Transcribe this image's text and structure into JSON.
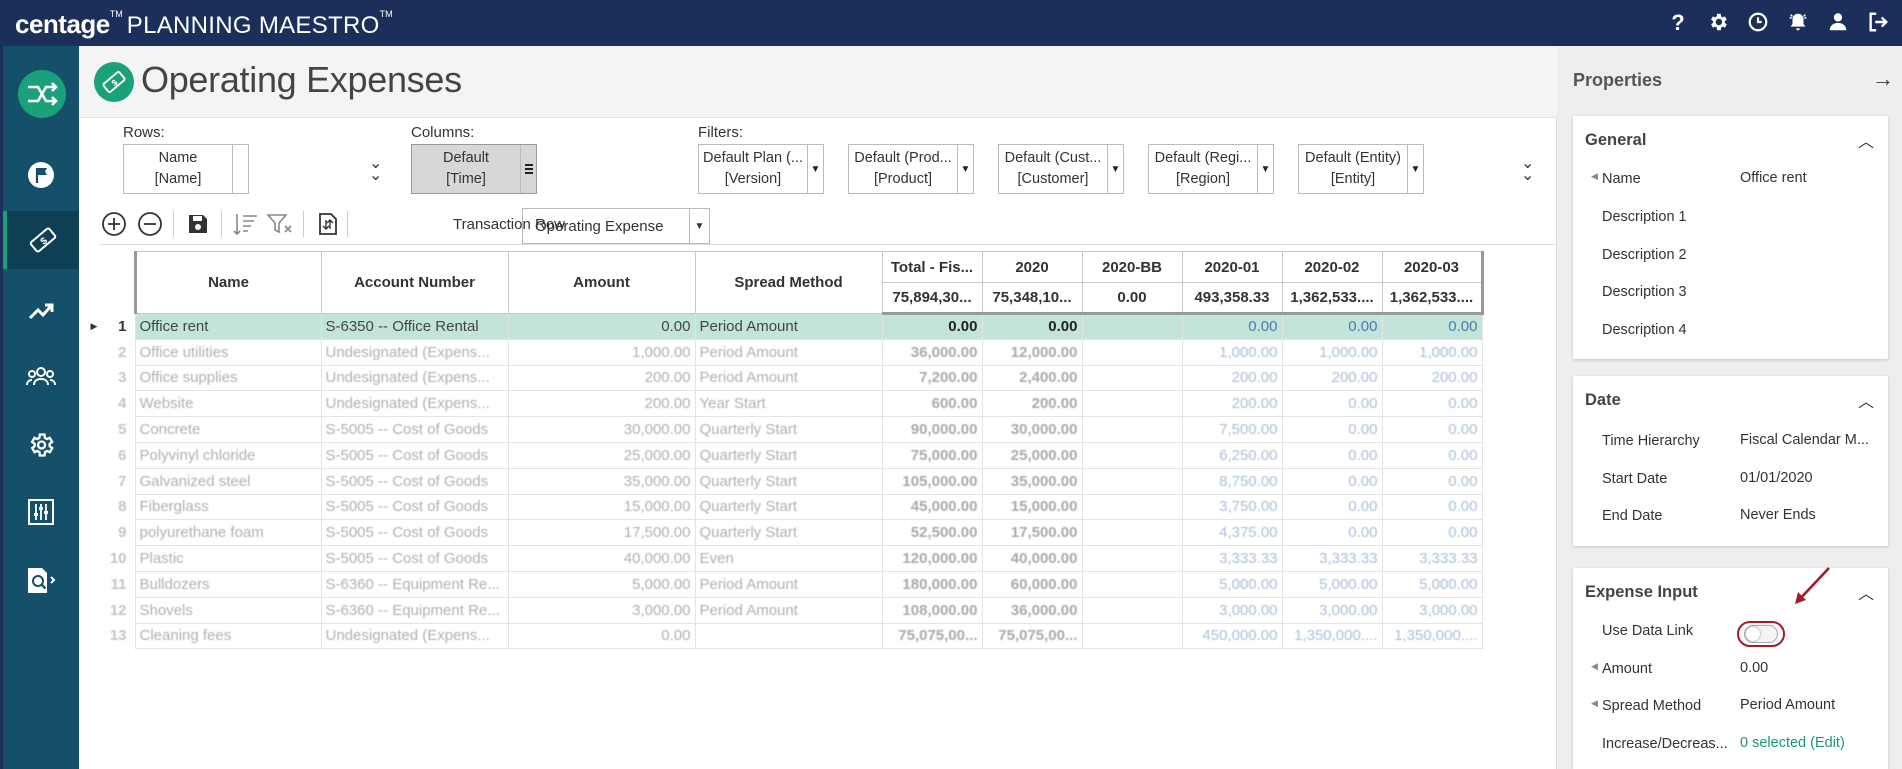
{
  "app": {
    "brand_bold": "centage",
    "brand_tm": "TM",
    "brand_light": "PLANNING MAESTRO",
    "brand_tm2": "TM"
  },
  "page": {
    "title": "Operating Expenses"
  },
  "selectors": {
    "rows_label": "Rows:",
    "columns_label": "Columns:",
    "filters_label": "Filters:",
    "rows": {
      "line1": "Name",
      "line2": "[Name]"
    },
    "columns": {
      "line1": "Default",
      "line2": "[Time]"
    },
    "filters": [
      {
        "line1": "Default Plan (...",
        "line2": "[Version]"
      },
      {
        "line1": "Default (Prod...",
        "line2": "[Product]"
      },
      {
        "line1": "Default (Cust...",
        "line2": "[Customer]"
      },
      {
        "line1": "Default (Regi...",
        "line2": "[Region]"
      },
      {
        "line1": "Default (Entity)",
        "line2": "[Entity]"
      }
    ]
  },
  "toolbar": {
    "transaction_row_label": "Transaction Row",
    "transaction_row_value": "Operating Expense"
  },
  "grid": {
    "headers": {
      "name": "Name",
      "account": "Account Number",
      "amount": "Amount",
      "spread": "Spread Method",
      "periods": [
        "Total - Fis...",
        "2020",
        "2020-BB",
        "2020-01",
        "2020-02",
        "2020-03"
      ],
      "totals": [
        "75,894,30...",
        "75,348,10...",
        "0.00",
        "493,358.33",
        "1,362,533....",
        "1,362,533...."
      ]
    },
    "rows": [
      {
        "n": "1",
        "name": "Office rent",
        "account": "S-6350 -- Office Rental",
        "amount": "0.00",
        "spread": "Period Amount",
        "total": "0.00",
        "y2020": "0.00",
        "bb": "",
        "m1": "0.00",
        "m2": "0.00",
        "m3": "0.00"
      },
      {
        "n": "2",
        "name": "Office utilities",
        "account": "Undesignated (Expens...",
        "amount": "1,000.00",
        "spread": "Period Amount",
        "total": "36,000.00",
        "y2020": "12,000.00",
        "bb": "",
        "m1": "1,000.00",
        "m2": "1,000.00",
        "m3": "1,000.00"
      },
      {
        "n": "3",
        "name": "Office supplies",
        "account": "Undesignated (Expens...",
        "amount": "200.00",
        "spread": "Period Amount",
        "total": "7,200.00",
        "y2020": "2,400.00",
        "bb": "",
        "m1": "200.00",
        "m2": "200.00",
        "m3": "200.00"
      },
      {
        "n": "4",
        "name": "Website",
        "account": "Undesignated (Expens...",
        "amount": "200.00",
        "spread": "Year Start",
        "total": "600.00",
        "y2020": "200.00",
        "bb": "",
        "m1": "200.00",
        "m2": "0.00",
        "m3": "0.00"
      },
      {
        "n": "5",
        "name": "Concrete",
        "account": "S-5005 -- Cost of Goods",
        "amount": "30,000.00",
        "spread": "Quarterly Start",
        "total": "90,000.00",
        "y2020": "30,000.00",
        "bb": "",
        "m1": "7,500.00",
        "m2": "0.00",
        "m3": "0.00"
      },
      {
        "n": "6",
        "name": "Polyvinyl chloride",
        "account": "S-5005 -- Cost of Goods",
        "amount": "25,000.00",
        "spread": "Quarterly Start",
        "total": "75,000.00",
        "y2020": "25,000.00",
        "bb": "",
        "m1": "6,250.00",
        "m2": "0.00",
        "m3": "0.00"
      },
      {
        "n": "7",
        "name": "Galvanized steel",
        "account": "S-5005 -- Cost of Goods",
        "amount": "35,000.00",
        "spread": "Quarterly Start",
        "total": "105,000.00",
        "y2020": "35,000.00",
        "bb": "",
        "m1": "8,750.00",
        "m2": "0.00",
        "m3": "0.00"
      },
      {
        "n": "8",
        "name": "Fiberglass",
        "account": "S-5005 -- Cost of Goods",
        "amount": "15,000.00",
        "spread": "Quarterly Start",
        "total": "45,000.00",
        "y2020": "15,000.00",
        "bb": "",
        "m1": "3,750.00",
        "m2": "0.00",
        "m3": "0.00"
      },
      {
        "n": "9",
        "name": "polyurethane foam",
        "account": "S-5005 -- Cost of Goods",
        "amount": "17,500.00",
        "spread": "Quarterly Start",
        "total": "52,500.00",
        "y2020": "17,500.00",
        "bb": "",
        "m1": "4,375.00",
        "m2": "0.00",
        "m3": "0.00"
      },
      {
        "n": "10",
        "name": "Plastic",
        "account": "S-5005 -- Cost of Goods",
        "amount": "40,000.00",
        "spread": "Even",
        "total": "120,000.00",
        "y2020": "40,000.00",
        "bb": "",
        "m1": "3,333.33",
        "m2": "3,333.33",
        "m3": "3,333.33"
      },
      {
        "n": "11",
        "name": "Bulldozers",
        "account": "S-6360 -- Equipment Re...",
        "amount": "5,000.00",
        "spread": "Period Amount",
        "total": "180,000.00",
        "y2020": "60,000.00",
        "bb": "",
        "m1": "5,000.00",
        "m2": "5,000.00",
        "m3": "5,000.00"
      },
      {
        "n": "12",
        "name": "Shovels",
        "account": "S-6360 -- Equipment Re...",
        "amount": "3,000.00",
        "spread": "Period Amount",
        "total": "108,000.00",
        "y2020": "36,000.00",
        "bb": "",
        "m1": "3,000.00",
        "m2": "3,000.00",
        "m3": "3,000.00"
      },
      {
        "n": "13",
        "name": "Cleaning fees",
        "account": "Undesignated (Expens...",
        "amount": "0.00",
        "spread": "",
        "total": "75,075,00...",
        "y2020": "75,075,00...",
        "bb": "",
        "m1": "450,000.00",
        "m2": "1,350,000....",
        "m3": "1,350,000...."
      }
    ]
  },
  "properties": {
    "title": "Properties",
    "general": {
      "title": "General",
      "rows": [
        {
          "label": "Name",
          "value": "Office rent",
          "marker": true
        },
        {
          "label": "Description 1",
          "value": ""
        },
        {
          "label": "Description 2",
          "value": ""
        },
        {
          "label": "Description 3",
          "value": ""
        },
        {
          "label": "Description 4",
          "value": ""
        }
      ]
    },
    "date": {
      "title": "Date",
      "rows": [
        {
          "label": "Time Hierarchy",
          "value": "Fiscal Calendar M..."
        },
        {
          "label": "Start Date",
          "value": "01/01/2020"
        },
        {
          "label": "End Date",
          "value": "Never Ends"
        }
      ]
    },
    "expense_input": {
      "title": "Expense Input",
      "use_data_link_label": "Use Data Link",
      "use_data_link_on": false,
      "amount_label": "Amount",
      "amount_value": "0.00",
      "spread_label": "Spread Method",
      "spread_value": "Period Amount",
      "incdec_label": "Increase/Decreas...",
      "incdec_value": "0 selected (Edit)"
    }
  },
  "colors": {
    "header_bg": "#1c2f5b",
    "nav_bg": "#15506a",
    "accent": "#1aa07a",
    "selected_row": "#c3e4da",
    "annotation": "#a5192c"
  }
}
